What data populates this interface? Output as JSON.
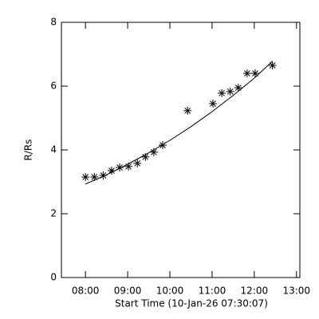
{
  "chart_data": {
    "type": "scatter",
    "xlabel": "Start Time (10-Jan-26 07:30:07)",
    "ylabel": "R/Rs",
    "xlim": [
      7.43,
      13.08
    ],
    "ylim": [
      0,
      8
    ],
    "xticks": [
      {
        "value": 8,
        "label": "08:00"
      },
      {
        "value": 9,
        "label": "09:00"
      },
      {
        "value": 10,
        "label": "10:00"
      },
      {
        "value": 11,
        "label": "11:00"
      },
      {
        "value": 12,
        "label": "12:00"
      },
      {
        "value": 13,
        "label": "13:00"
      }
    ],
    "yticks": [
      0,
      2,
      4,
      6,
      8
    ],
    "series": [
      {
        "marker": "asterisk",
        "color": "#000000",
        "x": [
          8.0,
          8.21,
          8.42,
          8.62,
          8.81,
          9.02,
          9.23,
          9.42,
          9.62,
          9.83,
          10.42,
          11.02,
          11.23,
          11.43,
          11.62,
          11.83,
          12.02,
          12.43
        ],
        "values": [
          3.15,
          3.15,
          3.2,
          3.35,
          3.45,
          3.48,
          3.58,
          3.78,
          3.93,
          4.15,
          5.23,
          5.45,
          5.78,
          5.83,
          5.95,
          6.4,
          6.4,
          6.65
        ]
      },
      {
        "marker": "line",
        "color": "#000000",
        "x": [
          8.0,
          8.5,
          9.0,
          9.5,
          10.0,
          10.5,
          11.0,
          11.5,
          12.0,
          12.43
        ],
        "values": [
          2.93,
          3.22,
          3.55,
          3.91,
          4.3,
          4.73,
          5.2,
          5.71,
          6.25,
          6.78
        ]
      }
    ]
  }
}
